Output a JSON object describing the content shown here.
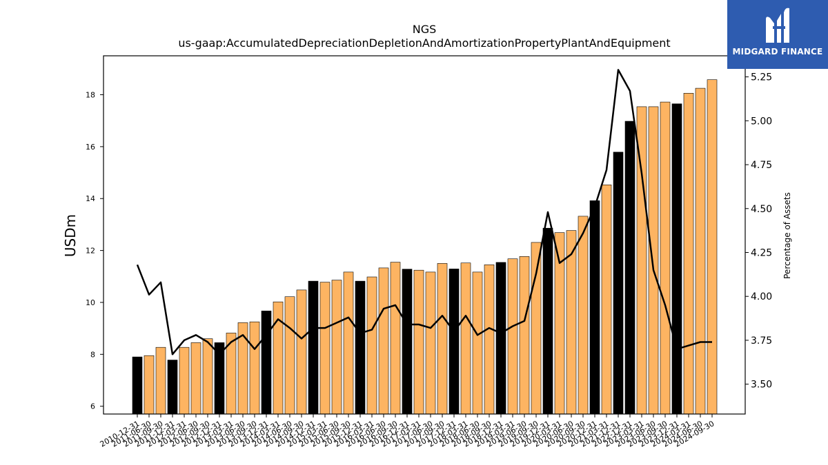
{
  "chart_data": {
    "type": "bar",
    "title": "NGS",
    "subtitle": "us-gaap:AccumulatedDepreciationDepletionAndAmortizationPropertyPlantAndEquipment",
    "ylabel": "USDm",
    "y2label": "Percentage of Assets",
    "ylim": [
      5.7,
      19.5
    ],
    "y2lim": [
      3.33,
      5.37
    ],
    "yticks": [
      "6",
      "8",
      "10",
      "12",
      "14",
      "16",
      "18"
    ],
    "y2ticks": [
      "3.50",
      "3.75",
      "4.00",
      "4.25",
      "4.50",
      "4.75",
      "5.00",
      "5.25"
    ],
    "colors": {
      "annual_bar": "#000000",
      "quarter_bar": "#fdb462",
      "line": "#000000"
    },
    "categories": [
      "2010-12-31",
      "2011-06-30",
      "2011-09-30",
      "2011-12-31",
      "2012-03-31",
      "2012-06-30",
      "2012-09-30",
      "2012-12-31",
      "2013-03-31",
      "2013-06-30",
      "2013-09-30",
      "2013-12-31",
      "2014-03-31",
      "2014-06-30",
      "2014-09-30",
      "2014-12-31",
      "2015-03-31",
      "2015-06-30",
      "2015-09-30",
      "2015-12-31",
      "2016-03-31",
      "2016-06-30",
      "2016-09-30",
      "2016-12-31",
      "2017-03-31",
      "2017-06-30",
      "2017-09-30",
      "2017-12-31",
      "2018-03-31",
      "2018-06-30",
      "2018-09-30",
      "2018-12-31",
      "2019-03-31",
      "2019-06-30",
      "2019-09-30",
      "2019-12-31",
      "2020-03-31",
      "2020-06-30",
      "2020-09-30",
      "2020-12-31",
      "2021-03-31",
      "2021-12-31",
      "2022-12-31",
      "2023-03-31",
      "2023-06-30",
      "2023-09-30",
      "2023-12-31",
      "2024-03-31",
      "2024-06-30",
      "2024-09-30"
    ],
    "bar_is_annual": [
      true,
      false,
      false,
      true,
      false,
      false,
      false,
      true,
      false,
      false,
      false,
      true,
      false,
      false,
      false,
      true,
      false,
      false,
      false,
      true,
      false,
      false,
      false,
      true,
      false,
      false,
      false,
      true,
      false,
      false,
      false,
      true,
      false,
      false,
      false,
      true,
      false,
      false,
      false,
      true,
      false,
      true,
      true,
      false,
      false,
      false,
      true,
      false,
      false,
      false
    ],
    "series": [
      {
        "name": "USDm",
        "values": [
          7.9,
          7.95,
          8.27,
          7.78,
          8.27,
          8.45,
          8.6,
          8.45,
          8.82,
          9.22,
          9.25,
          9.67,
          10.02,
          10.22,
          10.48,
          10.82,
          10.78,
          10.86,
          11.17,
          10.82,
          10.98,
          11.33,
          11.55,
          11.28,
          11.24,
          11.17,
          11.5,
          11.29,
          11.52,
          11.17,
          11.45,
          11.54,
          11.68,
          11.77,
          12.31,
          12.86,
          12.69,
          12.77,
          13.32,
          13.92,
          14.53,
          15.79,
          16.98,
          17.54,
          17.54,
          17.72,
          17.65,
          18.06,
          18.25,
          18.58
        ]
      },
      {
        "name": "Percentage of Assets",
        "values": [
          4.18,
          4.01,
          4.08,
          3.67,
          3.75,
          3.78,
          3.74,
          3.67,
          3.74,
          3.78,
          3.7,
          3.78,
          3.87,
          3.82,
          3.76,
          3.82,
          3.82,
          3.85,
          3.88,
          3.79,
          3.81,
          3.93,
          3.95,
          3.84,
          3.84,
          3.82,
          3.89,
          3.8,
          3.89,
          3.78,
          3.82,
          3.79,
          3.83,
          3.86,
          4.13,
          4.48,
          4.19,
          4.24,
          4.36,
          4.51,
          4.72,
          5.29,
          5.17,
          4.7,
          4.15,
          3.95,
          3.7,
          3.72,
          3.74,
          3.74
        ]
      }
    ]
  },
  "logo": {
    "text": "MIDGARD FINANCE",
    "icon": "midgard-logo-icon"
  }
}
